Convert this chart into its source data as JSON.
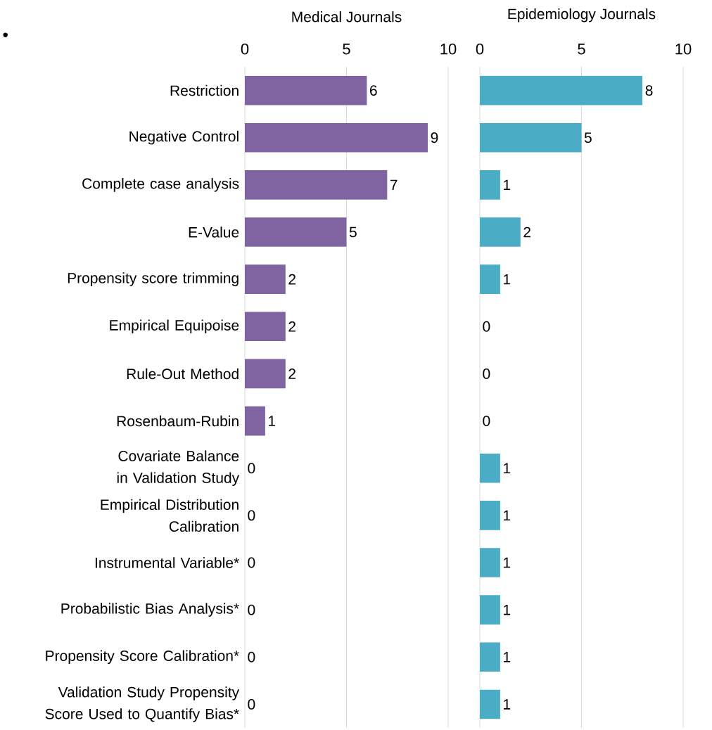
{
  "chart_data": [
    {
      "type": "bar",
      "orientation": "horizontal",
      "title": "Medical Journals",
      "categories": [
        "Restriction",
        "Negative Control",
        "Complete case analysis",
        "E-Value",
        "Propensity score trimming",
        "Empirical Equipoise",
        "Rule-Out Method",
        "Rosenbaum-Rubin",
        "Covariate Balance in Validation Study",
        "Empirical Distribution Calibration",
        "Instrumental Variable*",
        "Probabilistic Bias Analysis*",
        "Propensity Score Calibration*",
        "Validation Study Propensity Score Used to Quantify Bias*"
      ],
      "values": [
        6,
        9,
        7,
        5,
        2,
        2,
        2,
        1,
        0,
        0,
        0,
        0,
        0,
        0
      ],
      "color": "#8064a2",
      "xlim": [
        0,
        10
      ],
      "xticks": [
        0,
        5,
        10
      ],
      "grid": "x",
      "data_labels": true,
      "annotations": [
        "•"
      ]
    },
    {
      "type": "bar",
      "orientation": "horizontal",
      "title": "Epidemiology Journals",
      "categories": [
        null,
        null,
        null,
        null,
        null,
        null,
        null,
        null,
        null,
        null,
        null,
        null,
        null,
        null
      ],
      "values": [
        8,
        5,
        1,
        2,
        1,
        0,
        0,
        0,
        1,
        1,
        1,
        1,
        1,
        1
      ],
      "color": "#4bacc6",
      "xlim": [
        0,
        10
      ],
      "xticks": [
        0,
        5,
        10
      ],
      "grid": "x",
      "data_labels": true,
      "tick_labels": "x"
    }
  ]
}
